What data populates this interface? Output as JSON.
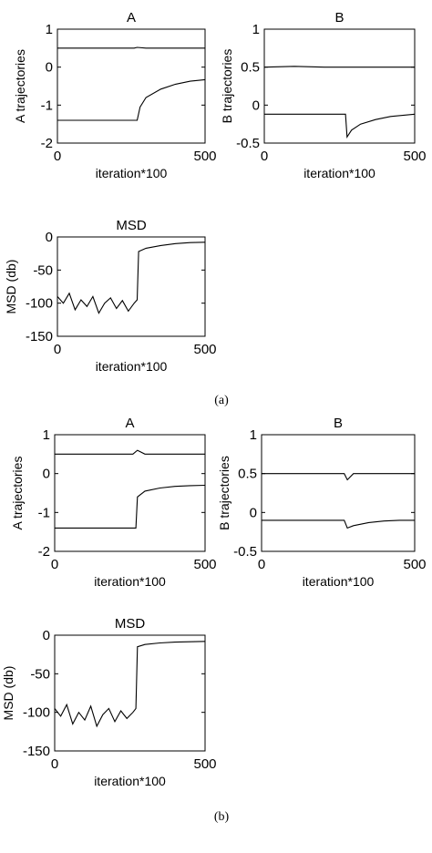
{
  "captions": {
    "a": "(a)",
    "b": "(b)"
  },
  "colors": {
    "line": "#000000",
    "background": "#ffffff"
  },
  "chart_data": [
    {
      "panel": "a",
      "id": "a-A",
      "type": "line",
      "title": "A",
      "xlabel": "iteration*100",
      "ylabel": "A trajectories",
      "xlim": [
        0,
        500
      ],
      "ylim": [
        -2,
        1
      ],
      "xticks": [
        0,
        500
      ],
      "yticks": [
        1,
        0,
        -1,
        -2
      ],
      "xtick_labels": [
        "0",
        "500"
      ],
      "ytick_labels": [
        "1",
        "0",
        "-1",
        "-2"
      ],
      "series": [
        {
          "x": [
            0,
            100,
            200,
            260,
            270,
            300,
            500
          ],
          "y": [
            0.5,
            0.5,
            0.5,
            0.5,
            0.52,
            0.5,
            0.5
          ]
        },
        {
          "x": [
            0,
            100,
            200,
            270,
            280,
            300,
            350,
            400,
            450,
            500
          ],
          "y": [
            -1.4,
            -1.4,
            -1.4,
            -1.4,
            -1.05,
            -0.8,
            -0.58,
            -0.45,
            -0.37,
            -0.33
          ]
        }
      ]
    },
    {
      "panel": "a",
      "id": "a-B",
      "type": "line",
      "title": "B",
      "xlabel": "iteration*100",
      "ylabel": "B trajectories",
      "xlim": [
        0,
        500
      ],
      "ylim": [
        -0.5,
        1
      ],
      "xticks": [
        0,
        500
      ],
      "yticks": [
        1,
        0.5,
        0,
        -0.5
      ],
      "xtick_labels": [
        "0",
        "500"
      ],
      "ytick_labels": [
        "1",
        "0.5",
        "0",
        "-0.5"
      ],
      "series": [
        {
          "x": [
            0,
            100,
            200,
            260,
            300,
            400,
            500
          ],
          "y": [
            0.5,
            0.51,
            0.5,
            0.5,
            0.5,
            0.5,
            0.5
          ]
        },
        {
          "x": [
            0,
            100,
            200,
            270,
            275,
            290,
            320,
            370,
            420,
            500
          ],
          "y": [
            -0.12,
            -0.12,
            -0.12,
            -0.12,
            -0.42,
            -0.33,
            -0.25,
            -0.19,
            -0.15,
            -0.12
          ]
        }
      ]
    },
    {
      "panel": "a",
      "id": "a-MSD",
      "type": "line",
      "title": "MSD",
      "xlabel": "iteration*100",
      "ylabel": "MSD (db)",
      "xlim": [
        0,
        500
      ],
      "ylim": [
        -150,
        0
      ],
      "xticks": [
        0,
        500
      ],
      "yticks": [
        0,
        -50,
        -100,
        -150
      ],
      "xtick_labels": [
        "0",
        "500"
      ],
      "ytick_labels": [
        "0",
        "-50",
        "-100",
        "-150"
      ],
      "series": [
        {
          "x": [
            0,
            20,
            40,
            60,
            80,
            100,
            120,
            140,
            160,
            180,
            200,
            220,
            240,
            260,
            270,
            275,
            300,
            350,
            400,
            450,
            500
          ],
          "y": [
            -90,
            -100,
            -85,
            -110,
            -95,
            -105,
            -90,
            -115,
            -100,
            -92,
            -108,
            -96,
            -112,
            -100,
            -95,
            -22,
            -17,
            -13,
            -10,
            -8.5,
            -8
          ]
        }
      ]
    },
    {
      "panel": "b",
      "id": "b-A",
      "type": "line",
      "title": "A",
      "xlabel": "iteration*100",
      "ylabel": "A trajectories",
      "xlim": [
        0,
        500
      ],
      "ylim": [
        -2,
        1
      ],
      "xticks": [
        0,
        500
      ],
      "yticks": [
        1,
        0,
        -1,
        -2
      ],
      "xtick_labels": [
        "0",
        "500"
      ],
      "ytick_labels": [
        "1",
        "0",
        "-1",
        "-2"
      ],
      "series": [
        {
          "x": [
            0,
            100,
            200,
            260,
            275,
            300,
            400,
            500
          ],
          "y": [
            0.5,
            0.5,
            0.5,
            0.5,
            0.6,
            0.5,
            0.5,
            0.5
          ]
        },
        {
          "x": [
            0,
            100,
            200,
            270,
            275,
            300,
            350,
            400,
            450,
            500
          ],
          "y": [
            -1.4,
            -1.4,
            -1.4,
            -1.4,
            -0.6,
            -0.45,
            -0.37,
            -0.33,
            -0.31,
            -0.3
          ]
        }
      ]
    },
    {
      "panel": "b",
      "id": "b-B",
      "type": "line",
      "title": "B",
      "xlabel": "iteration*100",
      "ylabel": "B trajectories",
      "xlim": [
        0,
        500
      ],
      "ylim": [
        -0.5,
        1
      ],
      "xticks": [
        0,
        500
      ],
      "yticks": [
        1,
        0.5,
        0,
        -0.5
      ],
      "xtick_labels": [
        "0",
        "500"
      ],
      "ytick_labels": [
        "1",
        "0.5",
        "0",
        "-0.5"
      ],
      "series": [
        {
          "x": [
            0,
            100,
            200,
            270,
            280,
            300,
            400,
            500
          ],
          "y": [
            0.5,
            0.5,
            0.5,
            0.5,
            0.42,
            0.5,
            0.5,
            0.5
          ]
        },
        {
          "x": [
            0,
            100,
            200,
            270,
            280,
            300,
            350,
            400,
            450,
            500
          ],
          "y": [
            -0.1,
            -0.1,
            -0.1,
            -0.1,
            -0.2,
            -0.17,
            -0.13,
            -0.11,
            -0.1,
            -0.1
          ]
        }
      ]
    },
    {
      "panel": "b",
      "id": "b-MSD",
      "type": "line",
      "title": "MSD",
      "xlabel": "iteration*100",
      "ylabel": "MSD (db)",
      "xlim": [
        0,
        500
      ],
      "ylim": [
        -150,
        0
      ],
      "xticks": [
        0,
        500
      ],
      "yticks": [
        0,
        -50,
        -100,
        -150
      ],
      "xtick_labels": [
        "0",
        "500"
      ],
      "ytick_labels": [
        "0",
        "-50",
        "-100",
        "-150"
      ],
      "series": [
        {
          "x": [
            0,
            20,
            40,
            60,
            80,
            100,
            120,
            140,
            160,
            180,
            200,
            220,
            240,
            260,
            270,
            275,
            300,
            350,
            400,
            450,
            500
          ],
          "y": [
            -95,
            -105,
            -90,
            -115,
            -100,
            -110,
            -92,
            -118,
            -103,
            -95,
            -112,
            -98,
            -108,
            -100,
            -95,
            -15,
            -12,
            -10,
            -9,
            -8.5,
            -8
          ]
        }
      ]
    }
  ]
}
